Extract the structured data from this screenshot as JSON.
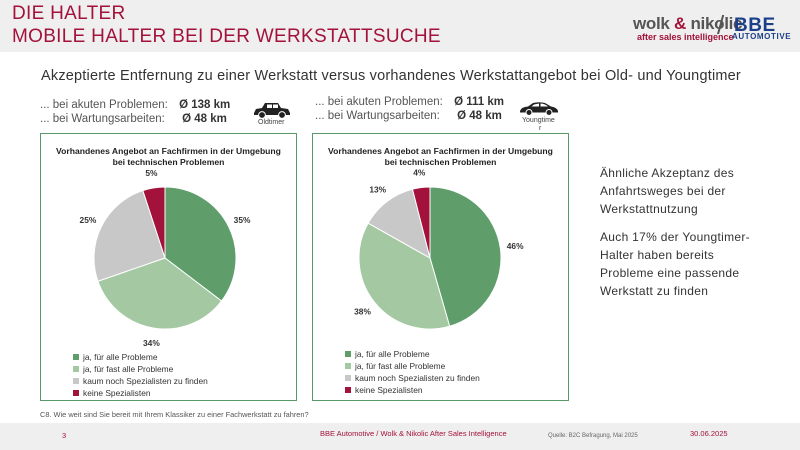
{
  "header": {
    "title_line1": "DIE HALTER",
    "title_line2": "MOBILE HALTER BEI DER WERKSTATTSUCHE",
    "logo_wolk": "wolk",
    "logo_amp": "&",
    "logo_nikolic": "nikolic",
    "logo_wolk_sub": "after sales intelligence",
    "logo_slash": "/",
    "logo_bbe": "BBE",
    "logo_bbe_sub": "AUTOMOTIVE"
  },
  "subtitle": "Akzeptierte Entfernung zu einer Werkstatt versus vorhandenes Werkstattangebot bei Old- und Youngtimer",
  "oldtimer": {
    "label_acute": "... bei akuten Problemen:",
    "value_acute": "Ø 138 km",
    "label_maint": "... bei Wartungsarbeiten:",
    "value_maint": "Ø 48 km",
    "car_label": "Oldtimer"
  },
  "youngtimer": {
    "label_acute": "... bei akuten Problemen:",
    "value_acute": "Ø 111 km",
    "label_maint": "... bei Wartungsarbeiten:",
    "value_maint": "Ø 48 km",
    "car_label_line1": "Youngtime",
    "car_label_line2": "r"
  },
  "colors": {
    "accent": "#a3123a",
    "border": "#5a9a68",
    "slice1": "#5f9e6a",
    "slice2": "#a4c9a2",
    "slice3": "#c8c8c8",
    "slice4": "#a3123a"
  },
  "chart_data": [
    {
      "type": "pie",
      "title_line1": "Vorhandenes Angebot an Fachfirmen in der Umgebung",
      "title_line2": "bei technischen Problemen",
      "categories": [
        "ja, für alle Probleme",
        "ja, für fast alle Probleme",
        "kaum noch Spezialisten zu finden",
        "keine Spezialisten"
      ],
      "values": [
        35,
        34,
        25,
        5
      ],
      "labels": [
        "35%",
        "34%",
        "25%",
        "5%"
      ],
      "legend_position": "bottom"
    },
    {
      "type": "pie",
      "title_line1": "Vorhandenes Angebot an Fachfirmen in der Umgebung",
      "title_line2": "bei technischen Problemen",
      "categories": [
        "ja, für alle Probleme",
        "ja, für fast alle Probleme",
        "kaum noch Spezialisten zu finden",
        "keine Spezialisten"
      ],
      "values": [
        46,
        38,
        13,
        4
      ],
      "labels": [
        "46%",
        "38%",
        "13%",
        "4%"
      ],
      "legend_position": "bottom"
    }
  ],
  "comment": {
    "line1": "Ähnliche Akzeptanz des",
    "line2": "Anfahrtsweges bei der",
    "line3": "Werkstattnutzung",
    "line4": "Auch 17% der Youngtimer-",
    "line5": "Halter haben bereits",
    "line6": "Probleme eine passende",
    "line7": "Werkstatt zu finden"
  },
  "question": "C8. Wie weit sind Sie bereit mit Ihrem Klassiker zu einer Fachwerkstatt zu fahren?",
  "footer": {
    "page": "3",
    "middle": "BBE Automotive / Wolk & Nikolic After Sales Intelligence",
    "source": "Quelle: B2C Befragung, Mai 2025",
    "date": "30.06.2025"
  }
}
